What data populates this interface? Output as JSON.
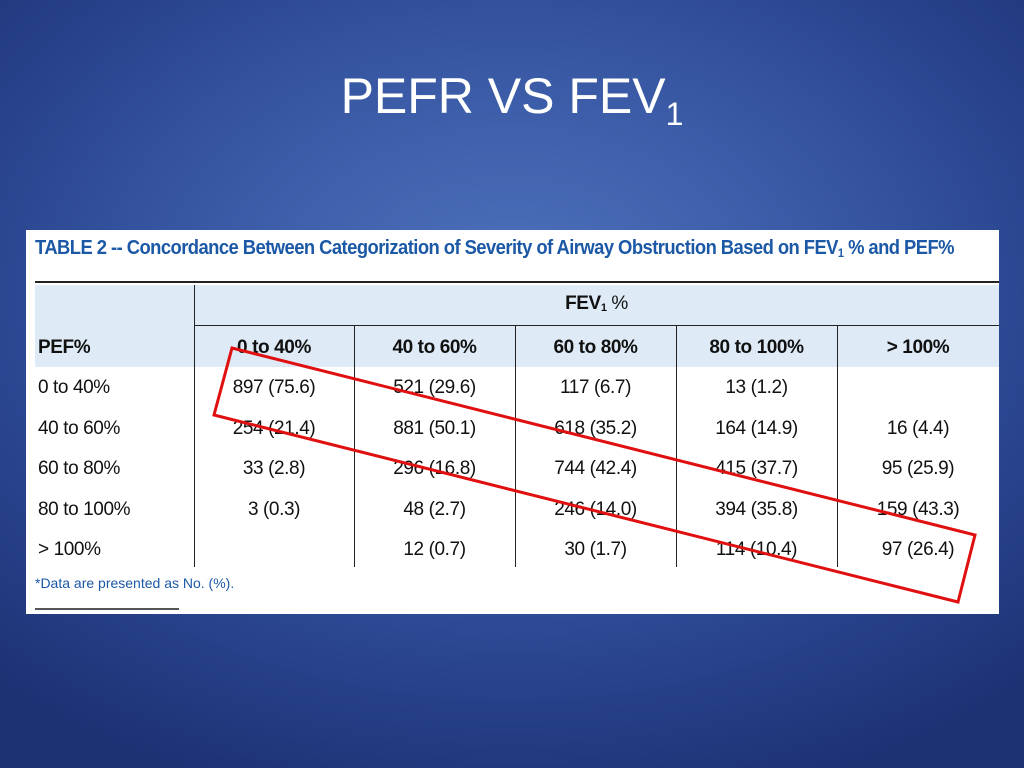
{
  "slide": {
    "title_main": "PEFR VS FEV",
    "title_sub": "1"
  },
  "table": {
    "caption_part1": "TABLE 2 -- Concordance Between Categorization of Severity of Airway Obstruction Based on FEV",
    "caption_sub": "1",
    "caption_part2": " % and PEF%",
    "group_header_main": "FEV",
    "group_header_sub": "1",
    "group_header_suffix": " %",
    "row_header": "PEF%",
    "columns": [
      "0 to 40%",
      "40 to 60%",
      "60 to 80%",
      "80 to 100%",
      "> 100%"
    ],
    "rows": [
      {
        "label": "0 to 40%",
        "cells": [
          "897 (75.6)",
          "521 (29.6)",
          "117 (6.7)",
          "13 (1.2)",
          ""
        ]
      },
      {
        "label": "40 to 60%",
        "cells": [
          "254 (21.4)",
          "881 (50.1)",
          "618 (35.2)",
          "164 (14.9)",
          "16 (4.4)"
        ]
      },
      {
        "label": "60 to 80%",
        "cells": [
          "33 (2.8)",
          "296 (16.8)",
          "744 (42.4)",
          "415 (37.7)",
          "95 (25.9)"
        ]
      },
      {
        "label": "80 to 100%",
        "cells": [
          "3 (0.3)",
          "48 (2.7)",
          "246 (14.0)",
          "394 (35.8)",
          "159 (43.3)"
        ]
      },
      {
        "label": "> 100%",
        "cells": [
          "",
          "12 (0.7)",
          "30 (1.7)",
          "114 (10.4)",
          "97 (26.4)"
        ]
      }
    ],
    "footnote": "*Data are presented as No. (%)."
  },
  "colors": {
    "highlight": "#e01010",
    "caption_text": "#1b58a6",
    "header_band": "#deebf6"
  }
}
